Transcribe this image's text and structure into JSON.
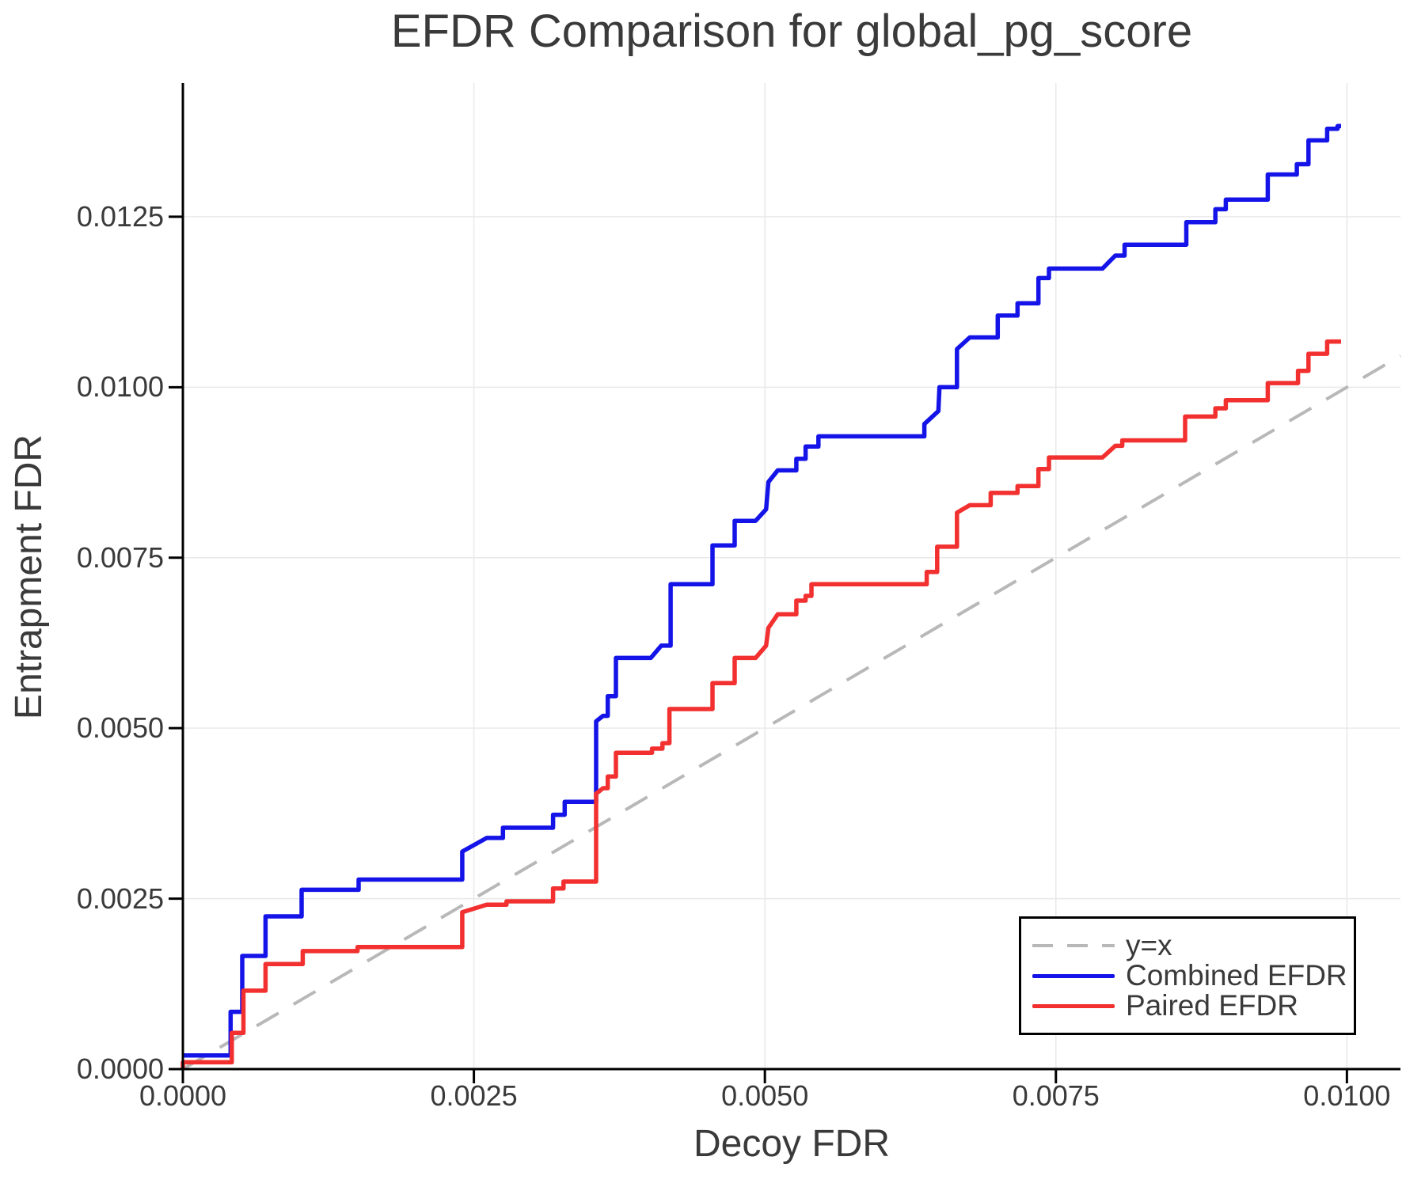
{
  "chart_data": {
    "type": "line",
    "title": "EFDR Comparison for global_pg_score",
    "xlabel": "Decoy FDR",
    "ylabel": "Entrapment FDR",
    "xlim": [
      0,
      0.01046
    ],
    "ylim": [
      0,
      0.01446
    ],
    "grid": true,
    "colors": {
      "grid": "#E9E9E9",
      "spine": "#000000",
      "text": "#3A3A3A",
      "background": "#FFFFFF"
    },
    "x_axis": {
      "tick_values": [
        0,
        0.0025,
        0.005,
        0.0075,
        0.01
      ],
      "tick_labels": [
        "0.0000",
        "0.0025",
        "0.0050",
        "0.0075",
        "0.0100"
      ]
    },
    "y_axis": {
      "tick_values": [
        0,
        0.0025,
        0.005,
        0.0075,
        0.01,
        0.0125
      ],
      "tick_labels": [
        "0.0000",
        "0.0025",
        "0.0050",
        "0.0075",
        "0.0100",
        "0.0125"
      ]
    },
    "legend": {
      "position": "bottom-right"
    },
    "series": [
      {
        "name": "y=x",
        "color": "#B8B8B8",
        "dash": true,
        "points": [
          [
            0,
            0
          ],
          [
            0.01046,
            0.01046
          ]
        ]
      },
      {
        "name": "Combined EFDR",
        "color": "#1414E8",
        "dash": false,
        "points": [
          [
            0,
            0.0002
          ],
          [
            0.00041,
            0.0002
          ],
          [
            0.00041,
            0.00084
          ],
          [
            0.00051,
            0.00084
          ],
          [
            0.00051,
            0.00166
          ],
          [
            0.00071,
            0.00166
          ],
          [
            0.00071,
            0.00224
          ],
          [
            0.00102,
            0.00224
          ],
          [
            0.00102,
            0.00263
          ],
          [
            0.00151,
            0.00263
          ],
          [
            0.00151,
            0.00278
          ],
          [
            0.0024,
            0.00278
          ],
          [
            0.0024,
            0.00319
          ],
          [
            0.00261,
            0.00339
          ],
          [
            0.00275,
            0.00339
          ],
          [
            0.00275,
            0.00354
          ],
          [
            0.00318,
            0.00354
          ],
          [
            0.00318,
            0.00373
          ],
          [
            0.00328,
            0.00373
          ],
          [
            0.00328,
            0.00392
          ],
          [
            0.00355,
            0.00392
          ],
          [
            0.00355,
            0.0051
          ],
          [
            0.00361,
            0.00518
          ],
          [
            0.00365,
            0.00518
          ],
          [
            0.00365,
            0.00547
          ],
          [
            0.00372,
            0.00547
          ],
          [
            0.00372,
            0.00603
          ],
          [
            0.00402,
            0.00603
          ],
          [
            0.00411,
            0.00621
          ],
          [
            0.00419,
            0.00621
          ],
          [
            0.00419,
            0.00711
          ],
          [
            0.00455,
            0.00711
          ],
          [
            0.00455,
            0.00768
          ],
          [
            0.00474,
            0.00768
          ],
          [
            0.00474,
            0.00804
          ],
          [
            0.00492,
            0.00804
          ],
          [
            0.00501,
            0.00821
          ],
          [
            0.00503,
            0.00861
          ],
          [
            0.00511,
            0.00878
          ],
          [
            0.00527,
            0.00878
          ],
          [
            0.00527,
            0.00895
          ],
          [
            0.00535,
            0.00895
          ],
          [
            0.00535,
            0.00913
          ],
          [
            0.00546,
            0.00913
          ],
          [
            0.00546,
            0.00928
          ],
          [
            0.00637,
            0.00928
          ],
          [
            0.00637,
            0.00946
          ],
          [
            0.00649,
            0.00965
          ],
          [
            0.0065,
            0.01
          ],
          [
            0.00665,
            0.01
          ],
          [
            0.00665,
            0.01056
          ],
          [
            0.00676,
            0.01073
          ],
          [
            0.007,
            0.01073
          ],
          [
            0.007,
            0.01105
          ],
          [
            0.00717,
            0.01105
          ],
          [
            0.00717,
            0.01123
          ],
          [
            0.00735,
            0.01123
          ],
          [
            0.00735,
            0.0116
          ],
          [
            0.00744,
            0.0116
          ],
          [
            0.00744,
            0.01174
          ],
          [
            0.0079,
            0.01174
          ],
          [
            0.00801,
            0.01193
          ],
          [
            0.00809,
            0.01193
          ],
          [
            0.00809,
            0.01209
          ],
          [
            0.00862,
            0.01209
          ],
          [
            0.00862,
            0.01242
          ],
          [
            0.00887,
            0.01242
          ],
          [
            0.00887,
            0.01261
          ],
          [
            0.00896,
            0.01261
          ],
          [
            0.00896,
            0.01275
          ],
          [
            0.00932,
            0.01275
          ],
          [
            0.00932,
            0.01312
          ],
          [
            0.00957,
            0.01312
          ],
          [
            0.00957,
            0.01327
          ],
          [
            0.00967,
            0.01327
          ],
          [
            0.00967,
            0.01362
          ],
          [
            0.00983,
            0.01362
          ],
          [
            0.00983,
            0.01379
          ],
          [
            0.00992,
            0.01379
          ],
          [
            0.00992,
            0.01383
          ],
          [
            0.00995,
            0.01383
          ]
        ]
      },
      {
        "name": "Paired EFDR",
        "color": "#F23030",
        "dash": false,
        "points": [
          [
            0,
            0
          ],
          [
            0,
            0.0001
          ],
          [
            0.00042,
            0.0001
          ],
          [
            0.00042,
            0.00053
          ],
          [
            0.00052,
            0.00053
          ],
          [
            0.00052,
            0.00115
          ],
          [
            0.00071,
            0.00115
          ],
          [
            0.00071,
            0.00154
          ],
          [
            0.00103,
            0.00154
          ],
          [
            0.00103,
            0.00173
          ],
          [
            0.0015,
            0.00173
          ],
          [
            0.0015,
            0.00179
          ],
          [
            0.0024,
            0.00179
          ],
          [
            0.0024,
            0.0023
          ],
          [
            0.00261,
            0.00241
          ],
          [
            0.00278,
            0.00241
          ],
          [
            0.00278,
            0.00246
          ],
          [
            0.00318,
            0.00246
          ],
          [
            0.00318,
            0.00265
          ],
          [
            0.00327,
            0.00265
          ],
          [
            0.00327,
            0.00275
          ],
          [
            0.00355,
            0.00275
          ],
          [
            0.00355,
            0.00404
          ],
          [
            0.00361,
            0.00412
          ],
          [
            0.00365,
            0.00412
          ],
          [
            0.00365,
            0.00429
          ],
          [
            0.00372,
            0.00429
          ],
          [
            0.00372,
            0.00464
          ],
          [
            0.00403,
            0.00464
          ],
          [
            0.00403,
            0.0047
          ],
          [
            0.00412,
            0.0047
          ],
          [
            0.00412,
            0.00478
          ],
          [
            0.00418,
            0.00478
          ],
          [
            0.00418,
            0.00528
          ],
          [
            0.00455,
            0.00528
          ],
          [
            0.00455,
            0.00566
          ],
          [
            0.00474,
            0.00566
          ],
          [
            0.00474,
            0.00603
          ],
          [
            0.00492,
            0.00603
          ],
          [
            0.00501,
            0.00621
          ],
          [
            0.00503,
            0.00647
          ],
          [
            0.00511,
            0.00667
          ],
          [
            0.00527,
            0.00667
          ],
          [
            0.00527,
            0.00687
          ],
          [
            0.00535,
            0.00687
          ],
          [
            0.00535,
            0.00694
          ],
          [
            0.0054,
            0.00694
          ],
          [
            0.0054,
            0.00711
          ],
          [
            0.00639,
            0.00711
          ],
          [
            0.00639,
            0.00729
          ],
          [
            0.00648,
            0.00729
          ],
          [
            0.00648,
            0.00766
          ],
          [
            0.00665,
            0.00766
          ],
          [
            0.00665,
            0.00816
          ],
          [
            0.00676,
            0.00827
          ],
          [
            0.00694,
            0.00827
          ],
          [
            0.00694,
            0.00845
          ],
          [
            0.00717,
            0.00845
          ],
          [
            0.00717,
            0.00855
          ],
          [
            0.00735,
            0.00855
          ],
          [
            0.00735,
            0.0088
          ],
          [
            0.00744,
            0.0088
          ],
          [
            0.00744,
            0.00897
          ],
          [
            0.0079,
            0.00897
          ],
          [
            0.00801,
            0.00914
          ],
          [
            0.00807,
            0.00914
          ],
          [
            0.00807,
            0.00922
          ],
          [
            0.00861,
            0.00922
          ],
          [
            0.00861,
            0.00957
          ],
          [
            0.00887,
            0.00957
          ],
          [
            0.00887,
            0.00969
          ],
          [
            0.00896,
            0.00969
          ],
          [
            0.00896,
            0.00981
          ],
          [
            0.00932,
            0.00981
          ],
          [
            0.00932,
            0.01006
          ],
          [
            0.00958,
            0.01006
          ],
          [
            0.00958,
            0.01024
          ],
          [
            0.00967,
            0.01024
          ],
          [
            0.00967,
            0.01049
          ],
          [
            0.00983,
            0.01049
          ],
          [
            0.00983,
            0.01067
          ],
          [
            0.00995,
            0.01067
          ]
        ]
      }
    ]
  }
}
